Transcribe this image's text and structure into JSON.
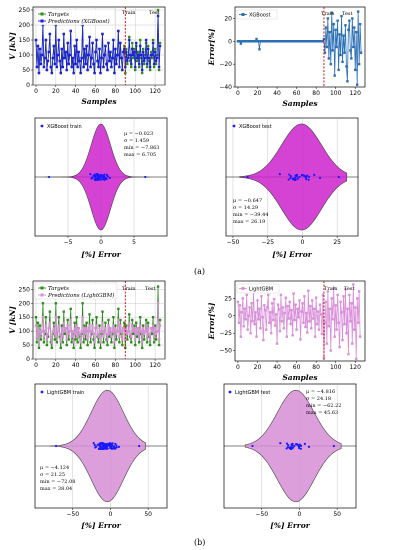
{
  "panels": {
    "a": "(a)",
    "b": "(b)"
  },
  "labels": {
    "samples": "Samples",
    "v_kn": "V [kN]",
    "error_pct": "Error[%]",
    "pct_error": "[%] Error",
    "train": "Train",
    "test": "Test",
    "targets": "Targets",
    "pred_xgb": "Predictions (XGBoost)",
    "pred_lgbm": "Predictions (LightGBM)",
    "xgb": "XGBoost",
    "lgbm": "LightGBM",
    "xgb_train": "XGBoost train",
    "xgb_test": "XGBoost test",
    "lgbm_train": "LightGBM train",
    "lgbm_test": "LightGBM test"
  },
  "stats": {
    "xgb_train": [
      "μ = −0.023",
      "σ = 1.459",
      "min = −7.863",
      "max = 6.705"
    ],
    "xgb_test": [
      "μ = −0.647",
      "σ = 14.29",
      "min = −39.44",
      "max = 26.19"
    ],
    "lgbm_train": [
      "μ = −4.124",
      "σ = 21.25",
      "min = −72.08",
      "max = 38.04"
    ],
    "lgbm_test": [
      "μ = −4.816",
      "σ = 24.18",
      "min = −62.22",
      "max = 45.63"
    ]
  },
  "colors": {
    "targets": "#2e8b1e",
    "pred_xgb": "#1f1fd6",
    "xgb_err": "#2b6fb5",
    "pred_lgbm": "#d98fd9",
    "violin_xgb": "#cc22cc",
    "violin_lgbm": "#d68ed6",
    "points": "#1a1aff",
    "split": "#cc0000"
  },
  "chart_data": [
    {
      "type": "line",
      "title": "",
      "xlabel": "Samples",
      "ylabel": "V [kN]",
      "xlim": [
        -3,
        130
      ],
      "ylim": [
        0,
        260
      ],
      "xticks": [
        0,
        20,
        40,
        60,
        80,
        100,
        120
      ],
      "yticks": [
        0,
        50,
        100,
        150,
        200,
        250
      ],
      "split_x": 90,
      "grid": true,
      "legend": "top-left",
      "series": [
        {
          "name": "Targets",
          "values": [
            150,
            60,
            130,
            40,
            120,
            70,
            100,
            200,
            60,
            90,
            150,
            50,
            80,
            110,
            170,
            60,
            40,
            90,
            130,
            70,
            200,
            60,
            100,
            150,
            80,
            40,
            120,
            60,
            170,
            90,
            110,
            50,
            140,
            70,
            100,
            180,
            60,
            90,
            40,
            130,
            70,
            150,
            60,
            110,
            80,
            40,
            90,
            200,
            60,
            120,
            70,
            130,
            50,
            100,
            160,
            60,
            90,
            140,
            70,
            40,
            110,
            150,
            80,
            60,
            120,
            40,
            90,
            170,
            60,
            100,
            130,
            70,
            50,
            140,
            80,
            110,
            60,
            90,
            150,
            40,
            120,
            70,
            100,
            180,
            60,
            140,
            90,
            50,
            110,
            130,
            40,
            120,
            70,
            100,
            160,
            80,
            60,
            140,
            90,
            120,
            50,
            130,
            80,
            110,
            60,
            150,
            90,
            40,
            120,
            70,
            100,
            140,
            60,
            130,
            80,
            50,
            110,
            90,
            150,
            60,
            120,
            70,
            100,
            250,
            50,
            140
          ]
        },
        {
          "name": "Predictions (XGBoost)",
          "values": [
            150,
            60,
            130,
            40,
            120,
            70,
            100,
            200,
            60,
            90,
            150,
            50,
            80,
            110,
            170,
            60,
            40,
            90,
            130,
            70,
            200,
            60,
            100,
            150,
            80,
            40,
            120,
            60,
            170,
            90,
            110,
            50,
            140,
            70,
            100,
            180,
            60,
            90,
            40,
            130,
            70,
            150,
            60,
            110,
            80,
            40,
            90,
            200,
            60,
            120,
            70,
            130,
            50,
            100,
            160,
            60,
            90,
            140,
            70,
            40,
            110,
            150,
            80,
            60,
            120,
            40,
            90,
            170,
            60,
            100,
            130,
            70,
            50,
            140,
            80,
            110,
            60,
            90,
            150,
            40,
            120,
            70,
            100,
            180,
            60,
            140,
            90,
            50,
            110,
            120,
            60,
            110,
            80,
            90,
            150,
            100,
            70,
            120,
            100,
            110,
            60,
            140,
            90,
            100,
            70,
            130,
            100,
            50,
            110,
            80,
            90,
            150,
            70,
            120,
            90,
            60,
            100,
            100,
            140,
            70,
            110,
            80,
            90,
            230,
            60,
            130
          ]
        }
      ]
    },
    {
      "type": "line",
      "title": "",
      "xlabel": "Samples",
      "ylabel": "Error[%]",
      "xlim": [
        -3,
        130
      ],
      "ylim": [
        -40,
        30
      ],
      "xticks": [
        0,
        20,
        40,
        60,
        80,
        100,
        120
      ],
      "yticks": [
        -40,
        -20,
        0,
        20
      ],
      "split_x": 88,
      "legend": "top-left",
      "series": [
        {
          "name": "XGBoost",
          "values": [
            0,
            0,
            0,
            -2,
            0,
            0,
            0,
            0,
            0,
            0,
            0,
            0,
            0,
            0,
            0,
            0,
            0,
            0,
            0,
            2,
            0,
            0,
            -7,
            0,
            0,
            0,
            0,
            0,
            0,
            0,
            0,
            0,
            0,
            0,
            0,
            0,
            0,
            0,
            0,
            0,
            0,
            0,
            0,
            0,
            0,
            0,
            0,
            0,
            0,
            0,
            0,
            0,
            0,
            0,
            0,
            0,
            0,
            0,
            0,
            0,
            0,
            0,
            0,
            0,
            0,
            0,
            0,
            0,
            0,
            0,
            0,
            0,
            0,
            0,
            0,
            0,
            0,
            0,
            0,
            0,
            0,
            0,
            0,
            0,
            0,
            0,
            0,
            0,
            2,
            -10,
            12,
            -5,
            20,
            -15,
            8,
            -20,
            25,
            -8,
            15,
            -30,
            10,
            -5,
            18,
            -25,
            6,
            -12,
            22,
            -18,
            5,
            -10,
            14,
            -22,
            -35,
            10,
            18,
            -8,
            -15,
            20,
            -5,
            12,
            -25,
            8,
            -38,
            26,
            -20,
            15,
            -10
          ]
        }
      ]
    },
    {
      "type": "violin",
      "xlabel": "[%] Error",
      "legend_label": "XGBoost train",
      "xlim": [
        -10,
        10
      ],
      "xticks": [
        -5,
        0,
        5
      ],
      "mean": -0.023,
      "std": 1.459,
      "min": -7.863,
      "max": 6.705
    },
    {
      "type": "violin",
      "xlabel": "[%] Error",
      "legend_label": "XGBoost test",
      "xlim": [
        -55,
        40
      ],
      "xticks": [
        -50,
        -25,
        0,
        25
      ],
      "mean": -0.647,
      "std": 14.29,
      "min": -39.44,
      "max": 26.19
    },
    {
      "type": "line",
      "title": "",
      "xlabel": "Samples",
      "ylabel": "V [kN]",
      "xlim": [
        -3,
        130
      ],
      "ylim": [
        0,
        280
      ],
      "xticks": [
        0,
        20,
        40,
        60,
        80,
        100,
        120
      ],
      "yticks": [
        0,
        50,
        100,
        150,
        200,
        250
      ],
      "split_x": 90,
      "grid": true,
      "legend": "top-left",
      "series": [
        {
          "name": "Targets",
          "values": [
            150,
            60,
            130,
            40,
            120,
            70,
            100,
            200,
            60,
            90,
            150,
            50,
            80,
            110,
            170,
            60,
            40,
            90,
            130,
            70,
            200,
            60,
            100,
            150,
            80,
            40,
            120,
            60,
            170,
            90,
            110,
            50,
            140,
            70,
            100,
            180,
            60,
            90,
            40,
            130,
            70,
            150,
            60,
            110,
            80,
            40,
            90,
            200,
            60,
            120,
            70,
            130,
            50,
            100,
            160,
            60,
            90,
            140,
            70,
            40,
            110,
            150,
            80,
            60,
            120,
            40,
            90,
            170,
            60,
            100,
            130,
            70,
            50,
            140,
            80,
            110,
            60,
            90,
            150,
            40,
            120,
            70,
            100,
            180,
            60,
            140,
            90,
            50,
            110,
            130,
            40,
            120,
            70,
            100,
            160,
            80,
            60,
            140,
            90,
            120,
            50,
            130,
            80,
            110,
            60,
            150,
            90,
            40,
            120,
            70,
            100,
            140,
            60,
            130,
            80,
            50,
            110,
            90,
            150,
            60,
            120,
            70,
            100,
            260,
            50,
            140
          ]
        },
        {
          "name": "Predictions (LightGBM)",
          "values": [
            120,
            80,
            110,
            60,
            100,
            90,
            100,
            150,
            80,
            100,
            120,
            70,
            90,
            110,
            130,
            80,
            60,
            100,
            110,
            90,
            150,
            80,
            100,
            120,
            90,
            60,
            110,
            80,
            130,
            100,
            110,
            70,
            120,
            90,
            100,
            140,
            80,
            100,
            60,
            110,
            90,
            120,
            80,
            110,
            90,
            60,
            100,
            150,
            80,
            110,
            90,
            110,
            70,
            100,
            120,
            80,
            100,
            120,
            90,
            60,
            110,
            120,
            90,
            80,
            110,
            60,
            100,
            130,
            80,
            100,
            110,
            90,
            70,
            120,
            90,
            110,
            80,
            100,
            120,
            60,
            110,
            90,
            100,
            140,
            80,
            120,
            100,
            70,
            110,
            110,
            70,
            110,
            90,
            100,
            130,
            90,
            80,
            120,
            100,
            110,
            70,
            110,
            90,
            110,
            80,
            120,
            100,
            60,
            110,
            90,
            100,
            120,
            80,
            110,
            90,
            70,
            110,
            100,
            120,
            80,
            110,
            90,
            100,
            200,
            70,
            120
          ]
        }
      ]
    },
    {
      "type": "line",
      "title": "",
      "xlabel": "Samples",
      "ylabel": "Error[%]",
      "xlim": [
        -3,
        130
      ],
      "ylim": [
        -65,
        50
      ],
      "xticks": [
        0,
        20,
        40,
        60,
        80,
        100,
        120
      ],
      "yticks": [
        -50,
        -25,
        0,
        25
      ],
      "split_x": 88,
      "legend": "top-left",
      "series": [
        {
          "name": "LightGBM",
          "values": [
            20,
            -10,
            15,
            -30,
            5,
            25,
            -15,
            10,
            -5,
            30,
            -20,
            0,
            12,
            -25,
            18,
            -8,
            35,
            -12,
            5,
            -30,
            22,
            -5,
            10,
            -18,
            28,
            -2,
            -35,
            15,
            8,
            -20,
            12,
            30,
            -10,
            5,
            -25,
            18,
            -6,
            24,
            -14,
            2,
            -40,
            16,
            9,
            -22,
            30,
            -8,
            12,
            -18,
            4,
            26,
            -30,
            14,
            -4,
            20,
            -12,
            8,
            -28,
            32,
            -6,
            16,
            -20,
            10,
            -2,
            22,
            -34,
            6,
            18,
            -10,
            28,
            -16,
            4,
            -24,
            36,
            -8,
            14,
            -18,
            22,
            -4,
            10,
            -30,
            26,
            -12,
            6,
            -20,
            16,
            2,
            -26,
            30,
            -60,
            -10,
            20,
            -40,
            35,
            -15,
            10,
            -50,
            25,
            -5,
            40,
            -30,
            15,
            -20,
            30,
            -10,
            -45,
            20,
            5,
            -35,
            28,
            -12,
            38,
            -25,
            10,
            -55,
            30,
            -8,
            18,
            -40,
            45,
            -20,
            12,
            -62,
            25,
            -10,
            35,
            -30
          ]
        }
      ]
    },
    {
      "type": "violin",
      "xlabel": "[%] Error",
      "legend_label": "LightGBM train",
      "xlim": [
        -100,
        75
      ],
      "xticks": [
        -50,
        0,
        50
      ],
      "mean": -4.124,
      "std": 21.25,
      "min": -72.08,
      "max": 38.04
    },
    {
      "type": "violin",
      "xlabel": "[%] Error",
      "legend_label": "LightGBM test",
      "xlim": [
        -100,
        75
      ],
      "xticks": [
        -50,
        0,
        50
      ],
      "mean": -4.816,
      "std": 24.18,
      "min": -62.22,
      "max": 45.63
    }
  ]
}
